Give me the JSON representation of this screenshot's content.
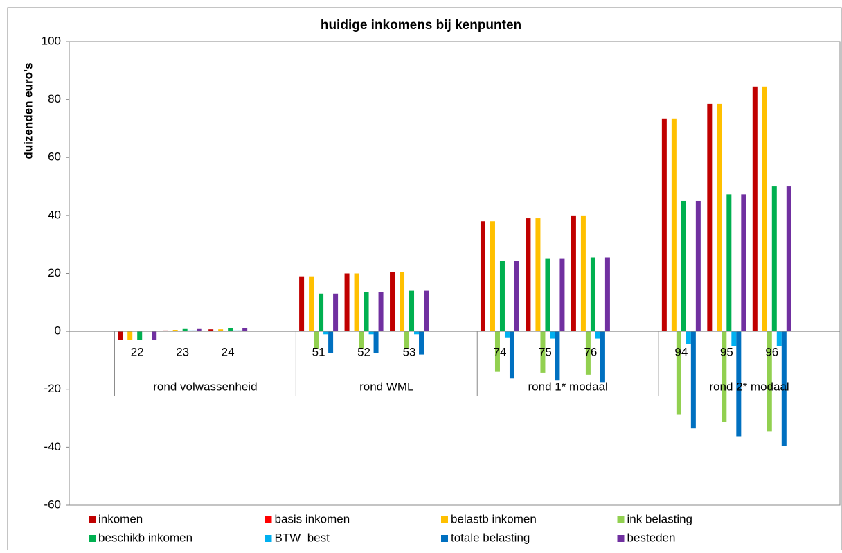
{
  "chart_data": {
    "type": "bar",
    "title": "huidige inkomens bij kenpunten",
    "y_label": "duizenden euro's",
    "categories": [
      null,
      "22",
      "23",
      "24",
      null,
      "51",
      "52",
      "53",
      null,
      "74",
      "75",
      "76",
      null,
      "94",
      "95",
      "96",
      null
    ],
    "group_labels": [
      "rond volwassenheid",
      "rond WML",
      "rond 1* modaal",
      "rond 2* modaal"
    ],
    "series": [
      {
        "name": "inkomen",
        "color": "#c00000",
        "values": [
          null,
          -3,
          0.3,
          0.7,
          null,
          19,
          20,
          20.5,
          null,
          38,
          39,
          40,
          null,
          73.5,
          78.5,
          84.5,
          null
        ]
      },
      {
        "name": "basis inkomen",
        "color": "#ff0000",
        "values": [
          null,
          0,
          0,
          0,
          null,
          0,
          0,
          0,
          null,
          0,
          0,
          0,
          null,
          0,
          0,
          0,
          null
        ]
      },
      {
        "name": "belastb inkomen",
        "color": "#ffc000",
        "values": [
          null,
          -3,
          0.5,
          0.7,
          null,
          19,
          20,
          20.5,
          null,
          38,
          39,
          40,
          null,
          73.5,
          78.5,
          84.5,
          null
        ]
      },
      {
        "name": "ink belasting",
        "color": "#92d050",
        "values": [
          null,
          0,
          0,
          0,
          null,
          -6,
          -6,
          -6,
          null,
          -14,
          -14.3,
          -15,
          null,
          -28.8,
          -31.3,
          -34.5,
          null
        ]
      },
      {
        "name": "beschikb inkomen",
        "color": "#00b050",
        "values": [
          null,
          -3,
          0.8,
          1.2,
          null,
          13,
          13.5,
          14,
          null,
          24.3,
          25,
          25.5,
          null,
          45,
          47.3,
          50,
          null
        ]
      },
      {
        "name": "BTW  best",
        "color": "#00b0f0",
        "values": [
          null,
          0,
          0.3,
          0.3,
          null,
          -1,
          -1,
          -1,
          null,
          -2.3,
          -2.5,
          -2.5,
          null,
          -4.5,
          -5,
          -5.2,
          null
        ]
      },
      {
        "name": "totale belasting",
        "color": "#0070c0",
        "values": [
          null,
          0,
          0.3,
          0.3,
          null,
          -7.5,
          -7.5,
          -8,
          null,
          -16.3,
          -17,
          -17.5,
          null,
          -33.5,
          -36.2,
          -39.5,
          null
        ]
      },
      {
        "name": "besteden",
        "color": "#7030a0",
        "values": [
          null,
          -3,
          0.8,
          1.2,
          null,
          13,
          13.5,
          14,
          null,
          24.3,
          25,
          25.5,
          null,
          45,
          47.3,
          50,
          null
        ]
      }
    ],
    "ylim": [
      -60,
      100
    ],
    "yticks": [
      -60,
      -40,
      -20,
      0,
      20,
      40,
      60,
      80,
      100
    ],
    "legend": "bottom"
  }
}
